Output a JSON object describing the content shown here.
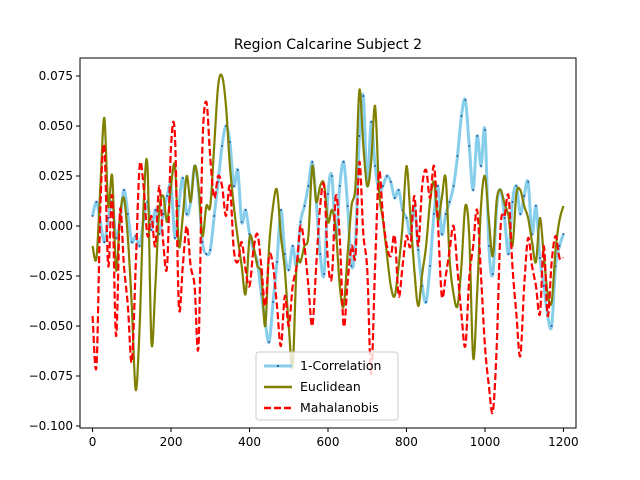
{
  "chart_data": {
    "type": "line",
    "title": "Region Calcarine Subject 2",
    "xlabel": "",
    "ylabel": "",
    "xlim": [
      -32,
      1232
    ],
    "ylim": [
      -0.101,
      0.084
    ],
    "x_ticks": [
      0,
      200,
      400,
      600,
      800,
      1000,
      1200
    ],
    "x_tick_labels": [
      "0",
      "200",
      "400",
      "600",
      "800",
      "1000",
      "1200"
    ],
    "y_ticks": [
      -0.1,
      -0.075,
      -0.05,
      -0.025,
      0.0,
      0.025,
      0.05,
      0.075
    ],
    "y_tick_labels": [
      "−0.100",
      "−0.075",
      "−0.050",
      "−0.025",
      "0.000",
      "0.025",
      "0.050",
      "0.075"
    ],
    "grid": false,
    "legend_position": "lower center",
    "series": [
      {
        "name": "1-Correlation",
        "color": "#87ceeb",
        "style": "solid-with-markers",
        "x": [
          0,
          10,
          20,
          30,
          40,
          50,
          60,
          70,
          80,
          90,
          100,
          110,
          120,
          130,
          140,
          150,
          160,
          170,
          180,
          190,
          200,
          210,
          220,
          230,
          240,
          250,
          260,
          270,
          280,
          290,
          300,
          310,
          320,
          330,
          340,
          350,
          360,
          370,
          380,
          390,
          400,
          410,
          420,
          430,
          440,
          450,
          460,
          470,
          480,
          490,
          500,
          510,
          520,
          530,
          540,
          550,
          560,
          570,
          580,
          590,
          600,
          610,
          620,
          630,
          640,
          650,
          660,
          670,
          680,
          690,
          700,
          710,
          720,
          730,
          740,
          750,
          760,
          770,
          780,
          790,
          800,
          810,
          820,
          830,
          840,
          850,
          860,
          870,
          880,
          890,
          900,
          910,
          920,
          930,
          940,
          950,
          960,
          970,
          980,
          990,
          1000,
          1010,
          1020,
          1030,
          1040,
          1050,
          1060,
          1070,
          1080,
          1090,
          1100,
          1110,
          1120,
          1130,
          1140,
          1150,
          1160,
          1170,
          1180,
          1190,
          1200
        ],
        "values": [
          0.005,
          0.012,
          0.002,
          -0.008,
          0.004,
          0.012,
          -0.006,
          0.003,
          0.018,
          0.006,
          -0.008,
          -0.005,
          -0.01,
          0.003,
          0.012,
          -0.002,
          0.008,
          -0.004,
          0.006,
          0.015,
          0.02,
          -0.006,
          0.01,
          0.024,
          0.006,
          0.012,
          0.03,
          0.018,
          -0.008,
          -0.014,
          -0.012,
          0.005,
          0.022,
          0.04,
          0.05,
          0.042,
          0.02,
          0.028,
          0.002,
          0.008,
          -0.004,
          -0.012,
          -0.018,
          -0.034,
          -0.048,
          -0.058,
          -0.038,
          -0.018,
          0.008,
          -0.014,
          -0.022,
          -0.01,
          -0.02,
          0.002,
          0.01,
          0.02,
          0.032,
          0.012,
          -0.014,
          -0.024,
          0.016,
          0.025,
          -0.006,
          0.02,
          0.032,
          0.01,
          -0.02,
          -0.008,
          0.045,
          0.065,
          0.02,
          0.052,
          0.03,
          0.018,
          0.02,
          0.025,
          0.022,
          0.014,
          0.018,
          0.008,
          0.004,
          -0.004,
          0.01,
          -0.012,
          -0.03,
          -0.038,
          -0.02,
          0.006,
          0.02,
          -0.004,
          0.006,
          0.012,
          0.02,
          0.035,
          0.055,
          0.063,
          0.04,
          0.018,
          0.045,
          0.03,
          0.048,
          -0.01,
          -0.024,
          0.01,
          0.018,
          0.004,
          -0.014,
          0.012,
          0.02,
          0.006,
          0.015,
          0.022,
          -0.004,
          0.01,
          -0.016,
          -0.03,
          -0.045,
          -0.05,
          -0.02,
          -0.01,
          -0.004
        ]
      },
      {
        "name": "Euclidean",
        "color": "#808000",
        "style": "solid",
        "x": [
          0,
          10,
          20,
          30,
          40,
          50,
          60,
          70,
          80,
          90,
          100,
          110,
          120,
          130,
          140,
          150,
          160,
          170,
          180,
          190,
          200,
          210,
          220,
          230,
          240,
          250,
          260,
          270,
          280,
          290,
          300,
          310,
          320,
          330,
          340,
          350,
          360,
          370,
          380,
          390,
          400,
          410,
          420,
          430,
          440,
          450,
          460,
          470,
          480,
          490,
          500,
          510,
          520,
          530,
          540,
          550,
          560,
          570,
          580,
          590,
          600,
          610,
          620,
          630,
          640,
          650,
          660,
          670,
          680,
          690,
          700,
          710,
          720,
          730,
          740,
          750,
          760,
          770,
          780,
          790,
          800,
          810,
          820,
          830,
          840,
          850,
          860,
          870,
          880,
          890,
          900,
          910,
          920,
          930,
          940,
          950,
          960,
          970,
          980,
          990,
          1000,
          1010,
          1020,
          1030,
          1040,
          1050,
          1060,
          1070,
          1080,
          1090,
          1100,
          1110,
          1120,
          1130,
          1140,
          1150,
          1160,
          1170,
          1180,
          1190,
          1200
        ],
        "values": [
          -0.01,
          -0.016,
          0.02,
          0.054,
          0.01,
          0.025,
          -0.022,
          0.005,
          0.014,
          -0.006,
          -0.04,
          -0.082,
          -0.05,
          0.01,
          0.03,
          -0.058,
          -0.03,
          0.008,
          0.015,
          0.002,
          0.02,
          0.03,
          -0.01,
          0.005,
          0.025,
          0.012,
          0.03,
          0.02,
          -0.005,
          0.01,
          0.01,
          0.04,
          0.07,
          0.075,
          0.06,
          0.03,
          0.01,
          -0.006,
          -0.02,
          -0.034,
          -0.006,
          -0.01,
          -0.02,
          -0.024,
          -0.05,
          -0.01,
          0.01,
          0.018,
          -0.005,
          -0.022,
          -0.05,
          -0.07,
          -0.02,
          -0.018,
          -0.01,
          -0.005,
          0.03,
          0.012,
          0.02,
          0.021,
          0.002,
          0.008,
          -0.002,
          -0.03,
          -0.04,
          -0.014,
          0.01,
          0.02,
          0.068,
          0.04,
          0.02,
          0.032,
          0.06,
          0.018,
          0.003,
          -0.014,
          -0.03,
          -0.035,
          -0.02,
          0.0,
          0.03,
          0.005,
          -0.022,
          -0.04,
          -0.024,
          -0.01,
          0.012,
          0.022,
          0.003,
          0.014,
          0.024,
          -0.017,
          -0.034,
          -0.04,
          -0.02,
          0.01,
          -0.005,
          -0.066,
          -0.034,
          0.01,
          0.025,
          0.003,
          -0.015,
          0.013,
          0.018,
          0.011,
          0.005,
          -0.01,
          0.016,
          0.018,
          0.01,
          0.004,
          -0.008,
          -0.018,
          0.004,
          -0.015,
          -0.034,
          -0.038,
          -0.012,
          0.003,
          0.01
        ]
      },
      {
        "name": "Mahalanobis",
        "color": "#ff0000",
        "style": "dashed",
        "x": [
          0,
          10,
          20,
          30,
          40,
          50,
          60,
          70,
          80,
          90,
          100,
          110,
          120,
          130,
          140,
          150,
          160,
          170,
          180,
          190,
          200,
          210,
          220,
          230,
          240,
          250,
          260,
          270,
          280,
          290,
          300,
          310,
          320,
          330,
          340,
          350,
          360,
          370,
          380,
          390,
          400,
          410,
          420,
          430,
          440,
          450,
          460,
          470,
          480,
          490,
          500,
          510,
          520,
          530,
          540,
          550,
          560,
          570,
          580,
          590,
          600,
          610,
          620,
          630,
          640,
          650,
          660,
          670,
          680,
          690,
          700,
          710,
          720,
          730,
          740,
          750,
          760,
          770,
          780,
          790,
          800,
          810,
          820,
          830,
          840,
          850,
          860,
          870,
          880,
          890,
          900,
          910,
          920,
          930,
          940,
          950,
          960,
          970,
          980,
          990,
          1000,
          1010,
          1020,
          1030,
          1040,
          1050,
          1060,
          1070,
          1080,
          1090,
          1100,
          1110,
          1120,
          1130,
          1140,
          1150,
          1160,
          1170,
          1180,
          1190,
          1200
        ],
        "values": [
          -0.045,
          -0.07,
          0.01,
          0.04,
          -0.02,
          0.015,
          -0.055,
          0.008,
          -0.02,
          -0.04,
          -0.068,
          -0.02,
          0.03,
          0.02,
          -0.005,
          0.005,
          -0.01,
          0.02,
          -0.008,
          -0.02,
          0.04,
          0.045,
          -0.04,
          -0.02,
          0.0,
          -0.02,
          -0.03,
          -0.06,
          0.04,
          0.062,
          0.034,
          0.014,
          0.025,
          0.02,
          0.005,
          0.02,
          -0.012,
          -0.018,
          -0.008,
          -0.022,
          -0.03,
          -0.012,
          -0.004,
          -0.02,
          -0.04,
          -0.015,
          -0.02,
          -0.04,
          -0.06,
          -0.035,
          -0.05,
          -0.03,
          -0.02,
          0.0,
          -0.01,
          -0.03,
          -0.05,
          -0.02,
          0.01,
          0.02,
          -0.018,
          -0.025,
          0.015,
          -0.006,
          -0.05,
          -0.028,
          -0.01,
          -0.015,
          0.032,
          -0.004,
          -0.022,
          -0.074,
          -0.02,
          0.027,
          0.005,
          -0.01,
          -0.015,
          -0.005,
          -0.035,
          -0.02,
          -0.005,
          -0.01,
          0.015,
          -0.01,
          0.02,
          0.028,
          0.014,
          0.03,
          0.002,
          -0.035,
          -0.025,
          -0.012,
          0.0,
          -0.022,
          -0.044,
          -0.06,
          -0.026,
          -0.01,
          0.008,
          -0.025,
          -0.06,
          -0.08,
          -0.093,
          -0.06,
          0.0,
          0.005,
          0.015,
          -0.02,
          -0.044,
          -0.065,
          -0.03,
          -0.006,
          -0.02,
          -0.03,
          -0.044,
          -0.01,
          -0.045,
          -0.018,
          -0.005,
          -0.016,
          -0.016
        ]
      }
    ]
  }
}
